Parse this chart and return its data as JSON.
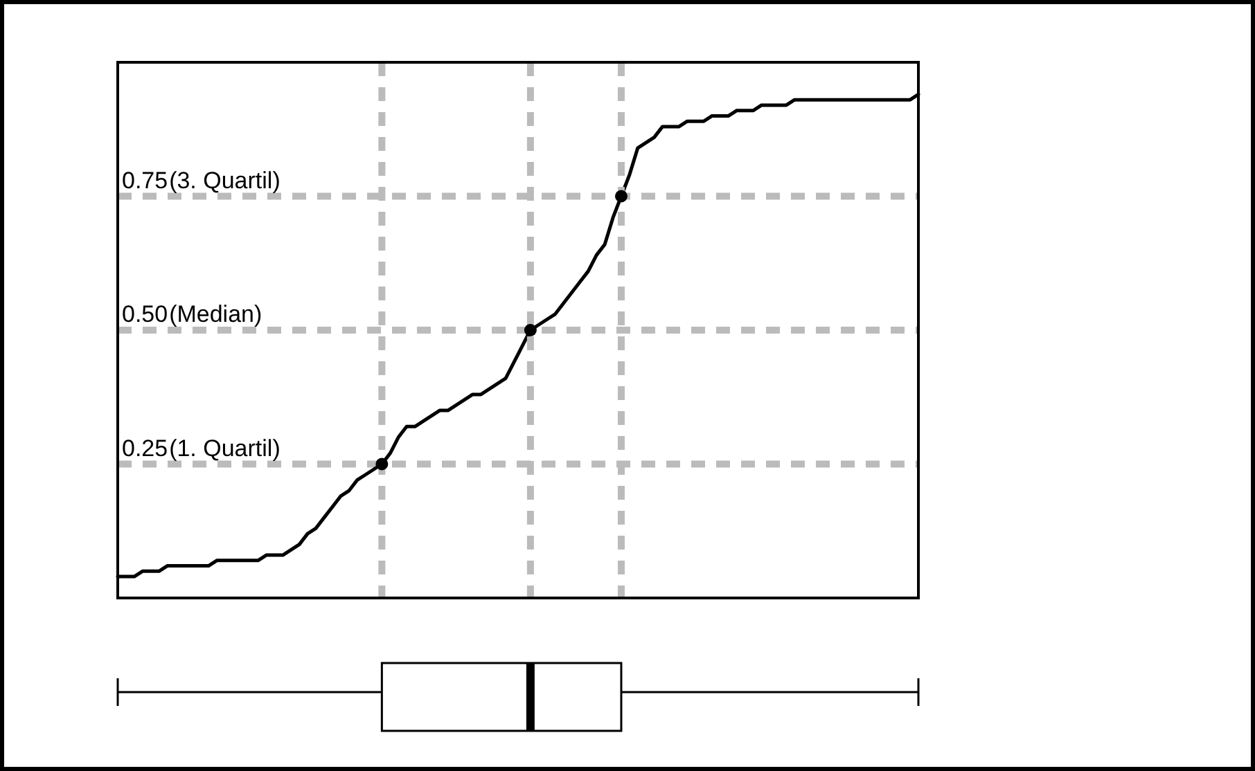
{
  "chart_data": {
    "type": "line",
    "ylim": [
      0,
      1
    ],
    "yticks": [
      0.25,
      {
        "value": 0.5,
        "label": "0.50"
      },
      0.75
    ],
    "annotations": [
      "(1. Quartil)",
      "(Median)",
      "(3. Quartil)"
    ],
    "tick_labels": "y",
    "grid": true,
    "legend": false,
    "categories": [
      null,
      null,
      null,
      null,
      null,
      null,
      null,
      null,
      null,
      null,
      null,
      null,
      null,
      null,
      null,
      null,
      null,
      null,
      null,
      null,
      null,
      null,
      null,
      null,
      null,
      null,
      null,
      null,
      null,
      null,
      null,
      null,
      null,
      null,
      null,
      null,
      null,
      null,
      null,
      null,
      null,
      null,
      null,
      null,
      null,
      null,
      null,
      null,
      null,
      null,
      null,
      null,
      null,
      null,
      null,
      null,
      null,
      null,
      null,
      null,
      null,
      null,
      null,
      null,
      null,
      null,
      null,
      null,
      null,
      null,
      null,
      null,
      null,
      null,
      null,
      null,
      null,
      null,
      null,
      null,
      null,
      null,
      null,
      null,
      null,
      null,
      null,
      null,
      null,
      null,
      null,
      null,
      null,
      null,
      null,
      null,
      null,
      null
    ],
    "series": [
      {
        "type": "line",
        "color": "#000000",
        "marker": "none",
        "values": [
          0.04,
          0.04,
          0.04,
          0.05,
          0.05,
          0.05,
          0.06,
          0.06,
          0.06,
          0.06,
          0.06,
          0.06,
          0.07,
          0.07,
          0.07,
          0.07,
          0.07,
          0.07,
          0.08,
          0.08,
          0.08,
          0.09,
          0.1,
          0.12,
          0.13,
          0.15,
          0.17,
          0.19,
          0.2,
          0.22,
          0.23,
          0.24,
          0.25,
          0.27,
          0.3,
          0.32,
          0.32,
          0.33,
          0.34,
          0.35,
          0.35,
          0.36,
          0.37,
          0.38,
          0.38,
          0.39,
          0.4,
          0.41,
          0.44,
          0.47,
          0.5,
          0.51,
          0.52,
          0.53,
          0.55,
          0.57,
          0.59,
          0.61,
          0.64,
          0.66,
          0.71,
          0.75,
          0.79,
          0.84,
          0.85,
          0.86,
          0.88,
          0.88,
          0.88,
          0.89,
          0.89,
          0.89,
          0.9,
          0.9,
          0.9,
          0.91,
          0.91,
          0.91,
          0.92,
          0.92,
          0.92,
          0.92,
          0.93,
          0.93,
          0.93,
          0.93,
          0.93,
          0.93,
          0.93,
          0.93,
          0.93,
          0.93,
          0.93,
          0.93,
          0.93,
          0.93,
          0.93,
          0.94
        ]
      },
      {
        "type": "scatter",
        "color": "#000000",
        "marker": "circle",
        "values": [
          null,
          null,
          null,
          null,
          null,
          null,
          null,
          null,
          null,
          null,
          null,
          null,
          null,
          null,
          null,
          null,
          null,
          null,
          null,
          null,
          null,
          null,
          null,
          null,
          null,
          null,
          null,
          null,
          null,
          null,
          null,
          null,
          0.25,
          null,
          null,
          null,
          null,
          null,
          null,
          null,
          null,
          null,
          null,
          null,
          null,
          null,
          null,
          null,
          null,
          null,
          0.5,
          null,
          null,
          null,
          null,
          null,
          null,
          null,
          null,
          null,
          null,
          0.75,
          null,
          null,
          null,
          null,
          null,
          null,
          null,
          null,
          null,
          null,
          null,
          null,
          null,
          null,
          null,
          null,
          null,
          null,
          null,
          null,
          null,
          null,
          null,
          null,
          null,
          null,
          null,
          null,
          null,
          null,
          null,
          null,
          null,
          null,
          null,
          null
        ]
      }
    ]
  }
}
